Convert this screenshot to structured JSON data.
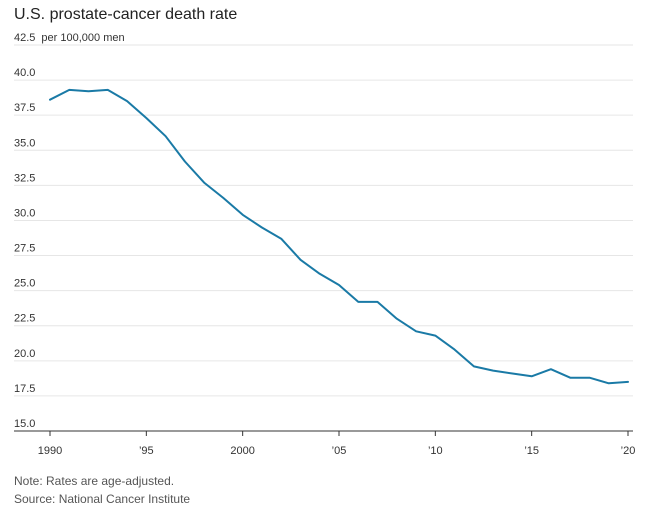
{
  "title": "U.S. prostate-cancer death rate",
  "notes": {
    "note": "Note: Rates are age-adjusted.",
    "source": "Source: National Cancer Institute"
  },
  "colors": {
    "line": "#1a7aa6",
    "grid": "#e6e6e6",
    "axis": "#333333"
  },
  "chart_data": {
    "type": "line",
    "title": "U.S. prostate-cancer death rate",
    "ylabel": "per 100,000 men",
    "xlabel": "",
    "ylim": [
      15.0,
      42.5
    ],
    "xlim": [
      1990,
      2020
    ],
    "grid": true,
    "yticks": [
      15.0,
      17.5,
      20.0,
      22.5,
      25.0,
      27.5,
      30.0,
      32.5,
      35.0,
      37.5,
      40.0,
      42.5
    ],
    "ytick_labels": [
      "15.0",
      "17.5",
      "20.0",
      "22.5",
      "25.0",
      "27.5",
      "30.0",
      "32.5",
      "35.0",
      "37.5",
      "40.0",
      "42.5"
    ],
    "xticks": [
      1990,
      1995,
      2000,
      2005,
      2010,
      2015,
      2020
    ],
    "xtick_labels": [
      "1990",
      "’95",
      "2000",
      "’05",
      "’10",
      "’15",
      "’20"
    ],
    "series": [
      {
        "x": [
          1990,
          1991,
          1992,
          1993,
          1994,
          1995,
          1996,
          1997,
          1998,
          1999,
          2000,
          2001,
          2002,
          2003,
          2004,
          2005,
          2006,
          2007,
          2008,
          2009,
          2010,
          2011,
          2012,
          2013,
          2014,
          2015,
          2016,
          2017,
          2018,
          2019,
          2020
        ],
        "values": [
          38.6,
          39.3,
          39.2,
          39.3,
          38.5,
          37.3,
          36.0,
          34.2,
          32.7,
          31.6,
          30.4,
          29.5,
          28.7,
          27.2,
          26.2,
          25.4,
          24.2,
          24.2,
          23.0,
          22.1,
          21.8,
          20.8,
          19.6,
          19.3,
          19.1,
          18.9,
          19.4,
          18.8,
          18.8,
          18.4,
          18.5
        ]
      }
    ]
  }
}
